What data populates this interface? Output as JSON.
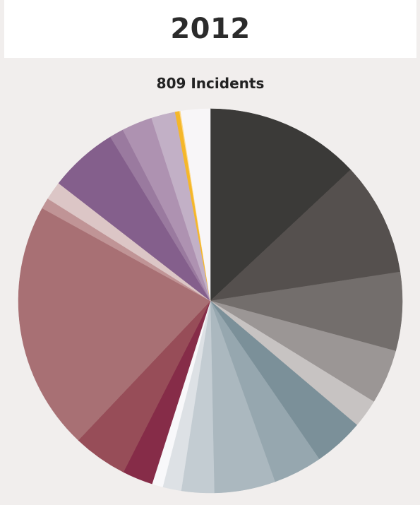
{
  "header": {
    "year": "2012"
  },
  "chart_data": {
    "type": "pie",
    "title": "2012",
    "subtitle": "809 Incidents",
    "values": [
      14.2,
      10.4,
      7.2,
      5.0,
      2.6,
      4.6,
      4.5,
      5.6,
      3.0,
      1.7,
      1.0,
      2.8,
      5.0,
      22.8,
      1.0,
      1.7,
      6.3,
      1.3,
      2.8,
      2.2,
      0.4,
      0.1,
      2.7
    ],
    "colors": [
      "#3b3a38",
      "#55504e",
      "#736e6c",
      "#9b9695",
      "#c7c3c2",
      "#7b9099",
      "#96a7af",
      "#abb8bf",
      "#c3ccd2",
      "#dde1e5",
      "#f8f8fa",
      "#862c48",
      "#974d58",
      "#a87074",
      "#c09496",
      "#dcc6c6",
      "#845f8c",
      "#9a7a9f",
      "#ae92b1",
      "#c2b0c6",
      "#f5b72a",
      "#fcd98d",
      "#f8f6f8"
    ]
  }
}
